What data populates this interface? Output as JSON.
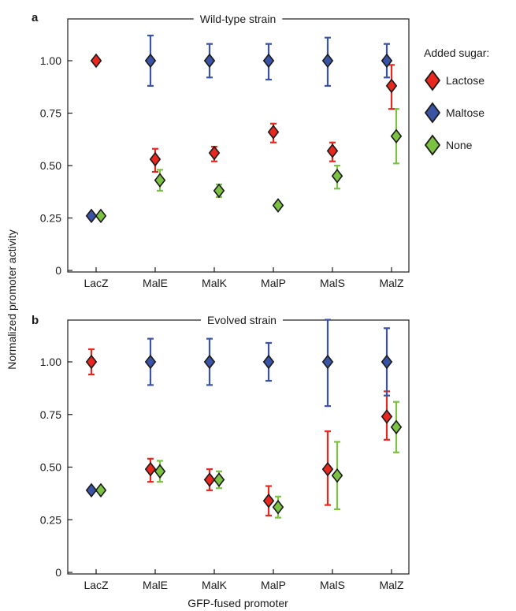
{
  "figure": {
    "ylabel": "Normalized promoter activity",
    "xlabel": "GFP-fused promoter",
    "legend_title": "Added sugar:",
    "legend": [
      {
        "name": "Lactose",
        "color": "#e8271e"
      },
      {
        "name": "Maltose",
        "color": "#3a53a4"
      },
      {
        "name": "None",
        "color": "#7cc242"
      }
    ]
  },
  "chart_data": [
    {
      "type": "scatter",
      "panel_label": "a",
      "title": "Wild-type strain",
      "categories": [
        "LacZ",
        "MalE",
        "MalK",
        "MalP",
        "MalS",
        "MalZ"
      ],
      "ylim": [
        0,
        1.2
      ],
      "yticks": [
        "0",
        "0.25",
        "0.50",
        "0.75",
        "1.00"
      ],
      "grid": false,
      "legend_position": "right",
      "series": [
        {
          "name": "Lactose",
          "color": "#e8271e",
          "values": [
            1.0,
            0.53,
            0.56,
            0.66,
            0.57,
            0.88
          ],
          "err_low": [
            0,
            0.06,
            0.04,
            0.05,
            0.05,
            0.11
          ],
          "err_high": [
            0,
            0.05,
            0.03,
            0.04,
            0.04,
            0.1
          ]
        },
        {
          "name": "Maltose",
          "color": "#3a53a4",
          "values": [
            0.26,
            1.0,
            1.0,
            1.0,
            1.0,
            1.0
          ],
          "err_low": [
            0,
            0.12,
            0.08,
            0.09,
            0.12,
            0.08
          ],
          "err_high": [
            0,
            0.12,
            0.08,
            0.08,
            0.11,
            0.08
          ]
        },
        {
          "name": "None",
          "color": "#7cc242",
          "values": [
            0.26,
            0.43,
            0.38,
            0.31,
            0.45,
            0.64
          ],
          "err_low": [
            0,
            0.05,
            0.03,
            0.015,
            0.06,
            0.13
          ],
          "err_high": [
            0,
            0.05,
            0.03,
            0.015,
            0.05,
            0.13
          ]
        }
      ]
    },
    {
      "type": "scatter",
      "panel_label": "b",
      "title": "Evolved strain",
      "categories": [
        "LacZ",
        "MalE",
        "MalK",
        "MalP",
        "MalS",
        "MalZ"
      ],
      "ylim": [
        0,
        1.2
      ],
      "yticks": [
        "0",
        "0.25",
        "0.50",
        "0.75",
        "1.00"
      ],
      "grid": false,
      "legend_position": "right",
      "series": [
        {
          "name": "Lactose",
          "color": "#e8271e",
          "values": [
            1.0,
            0.49,
            0.44,
            0.34,
            0.49,
            0.74
          ],
          "err_low": [
            0.06,
            0.06,
            0.05,
            0.07,
            0.17,
            0.11
          ],
          "err_high": [
            0.06,
            0.05,
            0.05,
            0.07,
            0.18,
            0.12
          ]
        },
        {
          "name": "Maltose",
          "color": "#3a53a4",
          "values": [
            0.39,
            1.0,
            1.0,
            1.0,
            1.0,
            1.0
          ],
          "err_low": [
            0,
            0.11,
            0.11,
            0.09,
            0.21,
            0.16
          ],
          "err_high": [
            0,
            0.11,
            0.11,
            0.09,
            0.2,
            0.16
          ]
        },
        {
          "name": "None",
          "color": "#7cc242",
          "values": [
            0.39,
            0.48,
            0.44,
            0.31,
            0.46,
            0.69
          ],
          "err_low": [
            0,
            0.05,
            0.04,
            0.05,
            0.16,
            0.12
          ],
          "err_high": [
            0,
            0.05,
            0.04,
            0.05,
            0.16,
            0.12
          ]
        }
      ]
    }
  ]
}
